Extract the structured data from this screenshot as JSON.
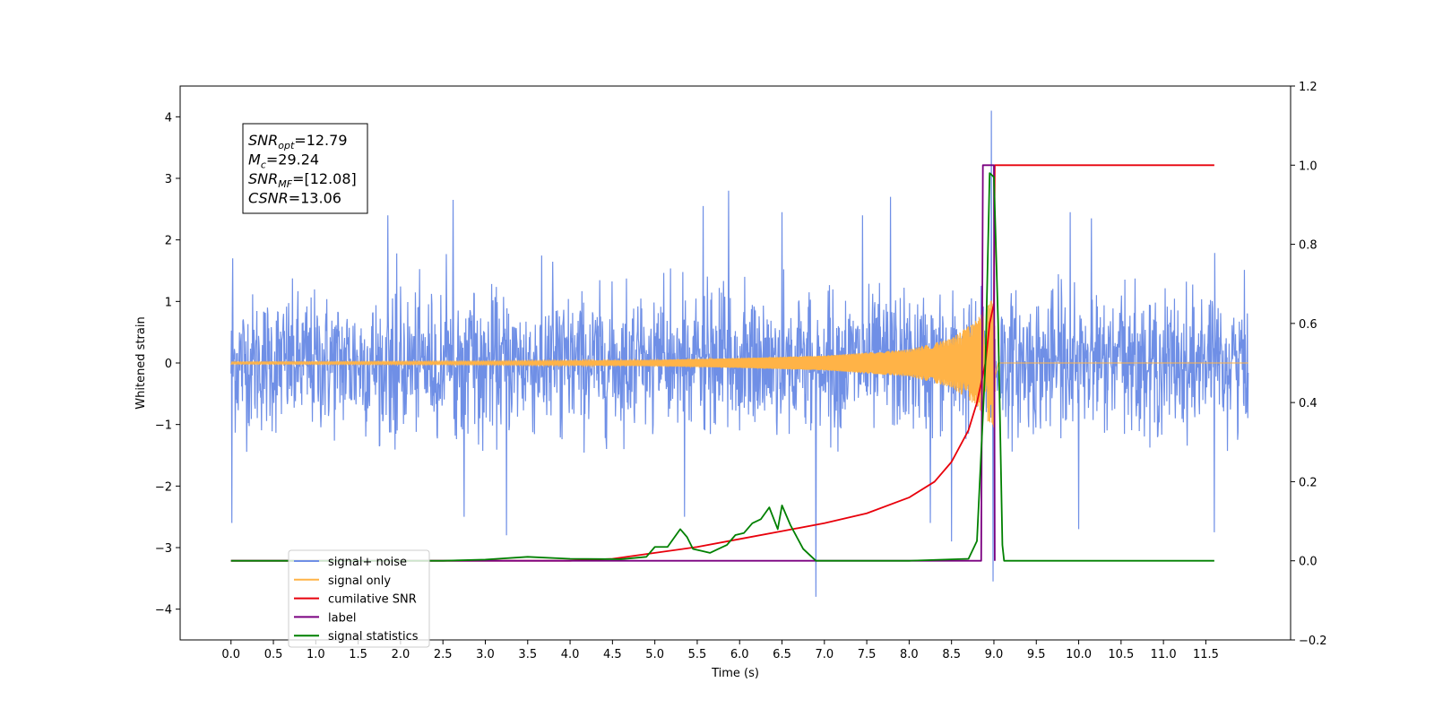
{
  "chart_data": {
    "type": "line",
    "xlabel": "Time (s)",
    "ylabel": "Whitened strain",
    "xlim": [
      -0.6,
      12.5
    ],
    "ylim_left": [
      -4.5,
      4.5
    ],
    "ylim_right": [
      -0.2,
      1.2
    ],
    "x_ticks": [
      0.0,
      0.5,
      1.0,
      1.5,
      2.0,
      2.5,
      3.0,
      3.5,
      4.0,
      4.5,
      5.0,
      5.5,
      6.0,
      6.5,
      7.0,
      7.5,
      8.0,
      8.5,
      9.0,
      9.5,
      10.0,
      10.5,
      11.0,
      11.5
    ],
    "x_tick_labels": [
      "0.0",
      "0.5",
      "1.0",
      "1.5",
      "2.0",
      "2.5",
      "3.0",
      "3.5",
      "4.0",
      "4.5",
      "5.0",
      "5.5",
      "6.0",
      "6.5",
      "7.0",
      "7.5",
      "8.0",
      "8.5",
      "9.0",
      "9.5",
      "10.0",
      "10.5",
      "11.0",
      "11.5"
    ],
    "y_left_ticks": [
      4,
      3,
      2,
      1,
      0,
      -1,
      -2,
      -3,
      -4
    ],
    "y_left_tick_labels": [
      "4",
      "3",
      "2",
      "1",
      "0",
      "−1",
      "−2",
      "−3",
      "−4"
    ],
    "y_right_ticks": [
      1.2,
      1.0,
      0.8,
      0.6,
      0.4,
      0.2,
      0.0,
      -0.2
    ],
    "y_right_tick_labels": [
      "1.2",
      "1.0",
      "0.8",
      "0.6",
      "0.4",
      "0.2",
      "0.0",
      "−0.2"
    ],
    "grid": false,
    "legend_placement": "lower-left",
    "annotation": [
      {
        "base": "SNR",
        "sub": "opt",
        "rest": "=12.79"
      },
      {
        "base": "M",
        "sub": "c",
        "rest": "=29.24"
      },
      {
        "base": "SNR",
        "sub": "MF",
        "rest": "=[12.08]"
      },
      {
        "base": "CSNR",
        "sub": "",
        "rest": "=13.06"
      }
    ],
    "series": [
      {
        "name": "signal+ noise",
        "color": "#6f8fe6",
        "axis": "left",
        "kind": "noise",
        "x_range": [
          0.0,
          12.0
        ],
        "typical_range": [
          -1.5,
          1.8
        ],
        "spikes": [
          {
            "x": 0.01,
            "y": -2.6
          },
          {
            "x": 0.02,
            "y": 1.7
          },
          {
            "x": 1.85,
            "y": 2.4
          },
          {
            "x": 2.62,
            "y": 2.65
          },
          {
            "x": 2.75,
            "y": -2.5
          },
          {
            "x": 3.25,
            "y": -2.8
          },
          {
            "x": 5.35,
            "y": -2.5
          },
          {
            "x": 5.57,
            "y": 2.55
          },
          {
            "x": 5.87,
            "y": 2.8
          },
          {
            "x": 6.5,
            "y": 2.45
          },
          {
            "x": 6.9,
            "y": -3.8
          },
          {
            "x": 7.45,
            "y": 2.4
          },
          {
            "x": 7.78,
            "y": 2.7
          },
          {
            "x": 8.25,
            "y": -2.6
          },
          {
            "x": 8.5,
            "y": -2.9
          },
          {
            "x": 8.97,
            "y": 4.1
          },
          {
            "x": 8.99,
            "y": -3.55
          },
          {
            "x": 9.9,
            "y": 2.45
          },
          {
            "x": 10.0,
            "y": -2.7
          },
          {
            "x": 10.15,
            "y": 2.35
          },
          {
            "x": 11.6,
            "y": -2.75
          }
        ]
      },
      {
        "name": "signal only",
        "color": "#ffb347",
        "axis": "left",
        "kind": "chirp",
        "x_range": [
          0.0,
          12.0
        ],
        "merger_time": 9.0,
        "envelope": [
          {
            "t": 0.0,
            "a": 0.02
          },
          {
            "t": 3.0,
            "a": 0.03
          },
          {
            "t": 5.0,
            "a": 0.05
          },
          {
            "t": 6.0,
            "a": 0.08
          },
          {
            "t": 7.0,
            "a": 0.12
          },
          {
            "t": 8.0,
            "a": 0.22
          },
          {
            "t": 8.5,
            "a": 0.4
          },
          {
            "t": 8.8,
            "a": 0.7
          },
          {
            "t": 8.95,
            "a": 1.0
          },
          {
            "t": 9.0,
            "a": 1.05
          },
          {
            "t": 9.05,
            "a": 0.0
          }
        ]
      },
      {
        "name": "cumilative SNR",
        "color": "#e8000b",
        "axis": "right",
        "points": [
          [
            0.0,
            0.0
          ],
          [
            4.0,
            0.0
          ],
          [
            4.5,
            0.005
          ],
          [
            5.0,
            0.02
          ],
          [
            5.5,
            0.035
          ],
          [
            6.0,
            0.055
          ],
          [
            6.5,
            0.075
          ],
          [
            7.0,
            0.095
          ],
          [
            7.5,
            0.12
          ],
          [
            8.0,
            0.16
          ],
          [
            8.3,
            0.2
          ],
          [
            8.5,
            0.25
          ],
          [
            8.7,
            0.33
          ],
          [
            8.8,
            0.4
          ],
          [
            8.9,
            0.5
          ],
          [
            8.95,
            0.6
          ],
          [
            9.0,
            0.65
          ],
          [
            9.01,
            1.0
          ],
          [
            11.6,
            1.0
          ]
        ]
      },
      {
        "name": "label",
        "color": "#7b0080",
        "axis": "right",
        "points": [
          [
            0.0,
            0.0
          ],
          [
            8.85,
            0.0
          ],
          [
            8.87,
            1.0
          ],
          [
            9.0,
            1.0
          ],
          [
            9.01,
            0.0
          ]
        ]
      },
      {
        "name": "signal statistics",
        "color": "#008000",
        "axis": "right",
        "points": [
          [
            0.0,
            0.0
          ],
          [
            2.5,
            0.0
          ],
          [
            3.0,
            0.003
          ],
          [
            3.5,
            0.01
          ],
          [
            4.0,
            0.005
          ],
          [
            4.6,
            0.004
          ],
          [
            4.9,
            0.01
          ],
          [
            5.0,
            0.035
          ],
          [
            5.15,
            0.035
          ],
          [
            5.25,
            0.065
          ],
          [
            5.3,
            0.08
          ],
          [
            5.38,
            0.06
          ],
          [
            5.45,
            0.03
          ],
          [
            5.55,
            0.025
          ],
          [
            5.65,
            0.02
          ],
          [
            5.75,
            0.03
          ],
          [
            5.85,
            0.04
          ],
          [
            5.95,
            0.065
          ],
          [
            6.05,
            0.07
          ],
          [
            6.15,
            0.095
          ],
          [
            6.25,
            0.105
          ],
          [
            6.35,
            0.135
          ],
          [
            6.45,
            0.08
          ],
          [
            6.5,
            0.14
          ],
          [
            6.6,
            0.09
          ],
          [
            6.75,
            0.03
          ],
          [
            6.9,
            0.0
          ],
          [
            8.0,
            0.0
          ],
          [
            8.7,
            0.005
          ],
          [
            8.8,
            0.05
          ],
          [
            8.9,
            0.5
          ],
          [
            8.95,
            0.98
          ],
          [
            9.0,
            0.97
          ],
          [
            9.05,
            0.6
          ],
          [
            9.1,
            0.04
          ],
          [
            9.12,
            0.0
          ],
          [
            11.6,
            0.0
          ]
        ]
      }
    ]
  }
}
